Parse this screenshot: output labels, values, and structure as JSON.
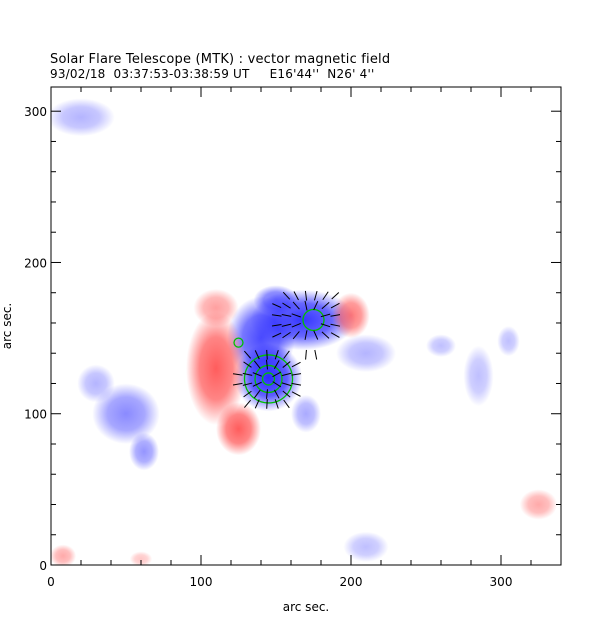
{
  "chart_data": {
    "type": "heatmap",
    "title": "Solar Flare Telescope (MTK) : vector magnetic field",
    "subtitle": "93/02/18  03:37:53-03:38:59 UT     E16'44''  N26' 4''",
    "xlabel": "arc sec.",
    "ylabel": "arc sec.",
    "xlim": [
      0,
      340
    ],
    "ylim": [
      0,
      316
    ],
    "x_ticks": [
      0,
      100,
      200,
      300
    ],
    "y_ticks": [
      0,
      100,
      200,
      300
    ],
    "colors": {
      "positive_polarity": "#ff4040",
      "negative_polarity": "#2a2aff",
      "contour": "#00c000",
      "vectors": "#000000"
    },
    "regions": [
      {
        "polarity": "negative",
        "x": 168,
        "y": 162,
        "rx": 28,
        "ry": 16,
        "strength": 0.95
      },
      {
        "polarity": "negative",
        "x": 145,
        "y": 124,
        "rx": 18,
        "ry": 18,
        "strength": 1.0
      },
      {
        "polarity": "negative",
        "x": 140,
        "y": 150,
        "rx": 18,
        "ry": 22,
        "strength": 0.85
      },
      {
        "polarity": "negative",
        "x": 150,
        "y": 175,
        "rx": 12,
        "ry": 8,
        "strength": 0.7
      },
      {
        "polarity": "negative",
        "x": 50,
        "y": 100,
        "rx": 18,
        "ry": 16,
        "strength": 0.55
      },
      {
        "polarity": "negative",
        "x": 62,
        "y": 75,
        "rx": 8,
        "ry": 10,
        "strength": 0.5
      },
      {
        "polarity": "negative",
        "x": 30,
        "y": 120,
        "rx": 10,
        "ry": 10,
        "strength": 0.35
      },
      {
        "polarity": "negative",
        "x": 20,
        "y": 296,
        "rx": 18,
        "ry": 10,
        "strength": 0.35
      },
      {
        "polarity": "negative",
        "x": 170,
        "y": 100,
        "rx": 8,
        "ry": 10,
        "strength": 0.4
      },
      {
        "polarity": "negative",
        "x": 210,
        "y": 140,
        "rx": 16,
        "ry": 10,
        "strength": 0.35
      },
      {
        "polarity": "negative",
        "x": 285,
        "y": 125,
        "rx": 8,
        "ry": 16,
        "strength": 0.3
      },
      {
        "polarity": "negative",
        "x": 305,
        "y": 148,
        "rx": 6,
        "ry": 8,
        "strength": 0.3
      },
      {
        "polarity": "negative",
        "x": 210,
        "y": 12,
        "rx": 12,
        "ry": 8,
        "strength": 0.3
      },
      {
        "polarity": "negative",
        "x": 260,
        "y": 145,
        "rx": 8,
        "ry": 6,
        "strength": 0.3
      },
      {
        "polarity": "positive",
        "x": 110,
        "y": 130,
        "rx": 16,
        "ry": 30,
        "strength": 0.85
      },
      {
        "polarity": "positive",
        "x": 125,
        "y": 90,
        "rx": 12,
        "ry": 14,
        "strength": 0.85
      },
      {
        "polarity": "positive",
        "x": 110,
        "y": 170,
        "rx": 12,
        "ry": 10,
        "strength": 0.5
      },
      {
        "polarity": "positive",
        "x": 200,
        "y": 165,
        "rx": 10,
        "ry": 12,
        "strength": 0.7
      },
      {
        "polarity": "positive",
        "x": 325,
        "y": 40,
        "rx": 10,
        "ry": 8,
        "strength": 0.45
      },
      {
        "polarity": "positive",
        "x": 8,
        "y": 6,
        "rx": 7,
        "ry": 6,
        "strength": 0.45
      },
      {
        "polarity": "positive",
        "x": 60,
        "y": 4,
        "rx": 6,
        "ry": 4,
        "strength": 0.3
      }
    ],
    "contours": [
      {
        "x": 145,
        "y": 123,
        "r": [
          4,
          9,
          16
        ]
      },
      {
        "x": 175,
        "y": 162,
        "r": [
          7
        ]
      },
      {
        "x": 125,
        "y": 147,
        "r": [
          3
        ]
      }
    ]
  }
}
